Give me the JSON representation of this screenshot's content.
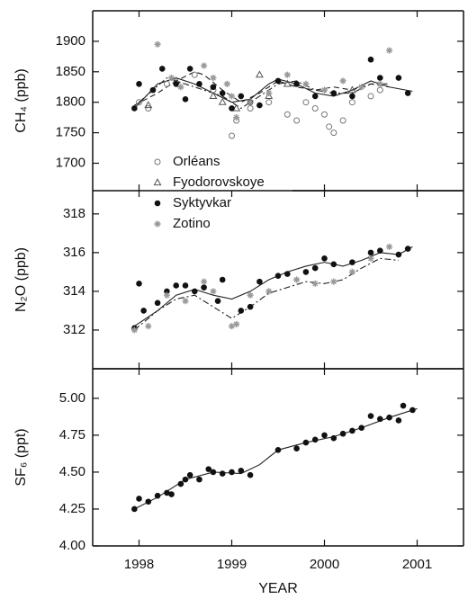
{
  "chart_data": [
    {
      "type": "scatter",
      "y_label": "CH₄ (ppb)",
      "xlim": [
        1997.5,
        2001.5
      ],
      "xticks": [
        1998,
        1999,
        2000,
        2001
      ],
      "xtick_labels": false,
      "ylim": [
        1655,
        1950
      ],
      "yticks": [
        1700,
        1750,
        1800,
        1850,
        1900
      ],
      "legend": "lower left",
      "series": [
        {
          "name": "Orléans",
          "marker": "circle-open",
          "color": "#777777",
          "x": [
            1998.0,
            1998.1,
            1998.3,
            1998.6,
            1998.8,
            1999.0,
            1999.05,
            1999.2,
            1999.4,
            1999.6,
            1999.7,
            1999.8,
            1999.9,
            2000.0,
            2000.05,
            2000.1,
            2000.2,
            2000.3,
            2000.5,
            2000.6
          ],
          "values": [
            1800,
            1790,
            1830,
            1845,
            1820,
            1745,
            1770,
            1790,
            1800,
            1780,
            1770,
            1800,
            1790,
            1780,
            1760,
            1750,
            1770,
            1800,
            1810,
            1820
          ]
        },
        {
          "name": "Fyodorovskoye",
          "marker": "triangle-open",
          "color": "#555555",
          "x": [
            1998.1,
            1998.4,
            1998.8,
            1998.9,
            1999.05,
            1999.3,
            1999.4,
            1999.6,
            2000.3
          ],
          "values": [
            1795,
            1835,
            1810,
            1800,
            1790,
            1845,
            1810,
            1830,
            1820
          ]
        },
        {
          "name": "Syktyvkar",
          "marker": "circle",
          "color": "#111111",
          "x": [
            1997.95,
            1998.0,
            1998.15,
            1998.25,
            1998.4,
            1998.5,
            1998.55,
            1998.65,
            1998.8,
            1998.9,
            1999.0,
            1999.1,
            1999.2,
            1999.3,
            1999.5,
            1999.7,
            1999.9,
            2000.1,
            2000.3,
            2000.5,
            2000.6,
            2000.8,
            2000.9
          ],
          "values": [
            1790,
            1830,
            1820,
            1855,
            1830,
            1805,
            1855,
            1830,
            1825,
            1815,
            1790,
            1810,
            1800,
            1795,
            1835,
            1830,
            1810,
            1815,
            1810,
            1870,
            1840,
            1840,
            1815
          ]
        },
        {
          "name": "Zotino",
          "marker": "star",
          "color": "#999999",
          "x": [
            1998.2,
            1998.35,
            1998.45,
            1998.7,
            1998.8,
            1998.95,
            1999.0,
            1999.05,
            1999.2,
            1999.4,
            1999.6,
            1999.8,
            2000.0,
            2000.2,
            2000.4,
            2000.6,
            2000.7
          ],
          "values": [
            1895,
            1840,
            1825,
            1860,
            1840,
            1830,
            1810,
            1775,
            1800,
            1815,
            1845,
            1830,
            1820,
            1835,
            1825,
            1830,
            1885
          ]
        }
      ],
      "curves": [
        {
          "style": "solid",
          "x": [
            1997.95,
            1998.2,
            1998.4,
            1998.6,
            1998.8,
            1999.0,
            1999.2,
            1999.4,
            1999.5,
            1999.7,
            1999.9,
            2000.1,
            2000.3,
            2000.5,
            2000.7,
            2000.95
          ],
          "values": [
            1790,
            1830,
            1840,
            1830,
            1815,
            1800,
            1805,
            1830,
            1838,
            1830,
            1815,
            1810,
            1820,
            1835,
            1825,
            1818
          ]
        },
        {
          "style": "dashed",
          "x": [
            1997.95,
            1998.2,
            1998.4,
            1998.6,
            1998.7,
            1998.9,
            1999.1,
            1999.3,
            1999.5,
            1999.7,
            1999.9,
            2000.1,
            2000.3,
            2000.5,
            2000.7
          ],
          "values": [
            1795,
            1815,
            1835,
            1850,
            1845,
            1820,
            1800,
            1815,
            1835,
            1825,
            1820,
            1825,
            1820,
            1830,
            1825
          ]
        },
        {
          "style": "dashdot",
          "x": [
            1998.0,
            1998.3,
            1998.6,
            1998.9,
            1999.1,
            1999.3,
            1999.5,
            1999.7,
            1999.9,
            2000.1,
            2000.3,
            2000.5,
            2000.7
          ],
          "values": [
            1800,
            1840,
            1825,
            1810,
            1790,
            1810,
            1830,
            1835,
            1820,
            1815,
            1815,
            1830,
            1830
          ]
        }
      ]
    },
    {
      "type": "scatter",
      "y_label": "N₂O (ppb)",
      "xlim": [
        1997.5,
        2001.5
      ],
      "xticks": [
        1998,
        1999,
        2000,
        2001
      ],
      "xtick_labels": false,
      "ylim": [
        310,
        319.2
      ],
      "yticks": [
        312,
        314,
        316,
        318
      ],
      "series": [
        {
          "marker": "circle",
          "color": "#111111",
          "x": [
            1997.95,
            1998.0,
            1998.05,
            1998.2,
            1998.3,
            1998.4,
            1998.5,
            1998.6,
            1998.7,
            1998.85,
            1998.9,
            1999.1,
            1999.2,
            1999.3,
            1999.5,
            1999.6,
            1999.8,
            1999.9,
            2000.0,
            2000.1,
            2000.3,
            2000.5,
            2000.6,
            2000.8,
            2000.9
          ],
          "values": [
            312.1,
            314.4,
            313.0,
            313.4,
            314.0,
            314.3,
            314.3,
            314.0,
            314.2,
            313.5,
            314.6,
            313.0,
            313.2,
            314.5,
            314.8,
            314.9,
            315.0,
            315.2,
            315.7,
            315.4,
            315.5,
            316.0,
            316.1,
            315.9,
            316.2
          ]
        },
        {
          "marker": "star",
          "color": "#999999",
          "x": [
            1997.95,
            1998.1,
            1998.3,
            1998.5,
            1998.7,
            1998.8,
            1999.0,
            1999.05,
            1999.2,
            1999.4,
            1999.7,
            1999.9,
            2000.1,
            2000.3,
            2000.5,
            2000.7
          ],
          "values": [
            312.0,
            312.2,
            313.8,
            313.5,
            314.5,
            314.0,
            312.2,
            312.3,
            313.8,
            314.0,
            314.6,
            314.4,
            314.5,
            315.0,
            315.7,
            316.3
          ]
        }
      ],
      "curves": [
        {
          "style": "solid",
          "x": [
            1997.95,
            1998.2,
            1998.4,
            1998.6,
            1998.8,
            1999.0,
            1999.2,
            1999.4,
            1999.6,
            1999.8,
            2000.0,
            2000.2,
            2000.4,
            2000.6,
            2000.8,
            2000.95
          ],
          "values": [
            312.2,
            313.0,
            313.8,
            314.1,
            313.8,
            313.6,
            314.0,
            314.6,
            315.0,
            315.3,
            315.5,
            315.3,
            315.6,
            316.0,
            315.9,
            316.3
          ]
        },
        {
          "style": "dashdot",
          "x": [
            1997.95,
            1998.2,
            1998.4,
            1998.6,
            1998.8,
            1999.0,
            1999.2,
            1999.4,
            1999.6,
            1999.8,
            2000.0,
            2000.2,
            2000.4,
            2000.6,
            2000.8
          ],
          "values": [
            312.0,
            313.0,
            313.6,
            313.8,
            313.2,
            312.6,
            313.2,
            313.9,
            314.2,
            314.5,
            314.4,
            314.6,
            315.2,
            315.7,
            315.6
          ]
        }
      ]
    },
    {
      "type": "scatter",
      "y_label": "SF₆ (ppt)",
      "x_label": "YEAR",
      "xlim": [
        1997.5,
        2001.5
      ],
      "xticks": [
        1998,
        1999,
        2000,
        2001
      ],
      "xtick_labels": true,
      "ylim": [
        4.0,
        5.2
      ],
      "yticks": [
        {
          "value": 4,
          "label": "4.00"
        },
        4.25,
        {
          "value": 4.5,
          "label": "4.50"
        },
        4.75,
        {
          "value": 5,
          "label": "5.00"
        }
      ],
      "series": [
        {
          "marker": "circle",
          "color": "#111111",
          "x": [
            1997.95,
            1998.0,
            1998.1,
            1998.2,
            1998.3,
            1998.35,
            1998.45,
            1998.5,
            1998.55,
            1998.65,
            1998.75,
            1998.8,
            1998.9,
            1999.0,
            1999.1,
            1999.2,
            1999.5,
            1999.7,
            1999.8,
            1999.9,
            2000.0,
            2000.1,
            2000.2,
            2000.3,
            2000.4,
            2000.5,
            2000.6,
            2000.7,
            2000.8,
            2000.85,
            2000.95
          ],
          "values": [
            4.25,
            4.32,
            4.3,
            4.34,
            4.36,
            4.35,
            4.42,
            4.45,
            4.48,
            4.45,
            4.52,
            4.5,
            4.49,
            4.5,
            4.51,
            4.48,
            4.65,
            4.66,
            4.7,
            4.72,
            4.75,
            4.73,
            4.76,
            4.78,
            4.8,
            4.88,
            4.86,
            4.87,
            4.85,
            4.95,
            4.92
          ]
        }
      ],
      "curves": [
        {
          "style": "solid",
          "x": [
            1997.95,
            1998.2,
            1998.5,
            1998.8,
            1999.1,
            1999.3,
            1999.5,
            1999.8,
            2000.1,
            2000.4,
            2000.7,
            2001.0
          ],
          "values": [
            4.25,
            4.33,
            4.45,
            4.5,
            4.49,
            4.55,
            4.65,
            4.7,
            4.74,
            4.8,
            4.87,
            4.93
          ]
        }
      ]
    }
  ]
}
